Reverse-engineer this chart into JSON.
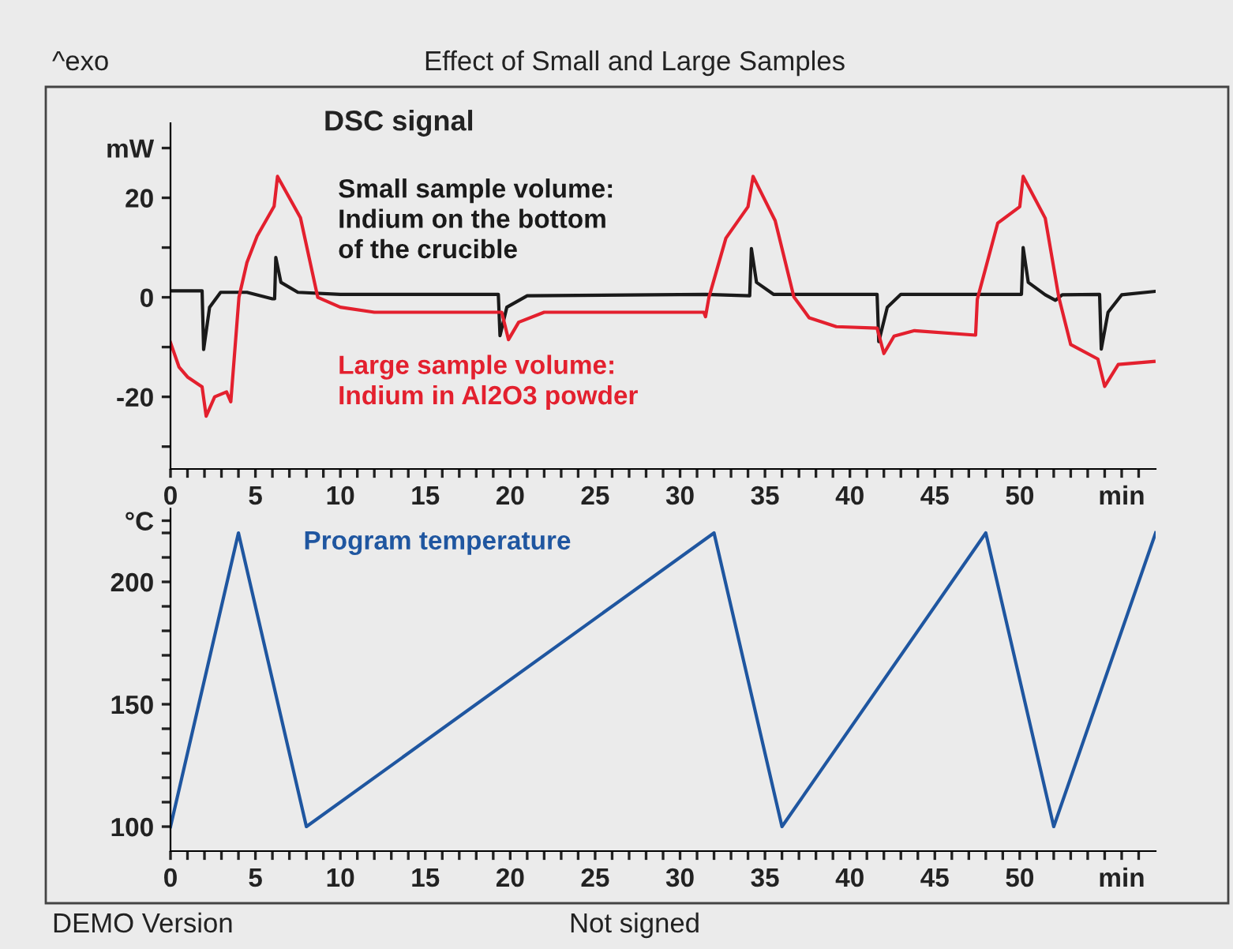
{
  "chart_data": [
    {
      "type": "line",
      "title": "Effect of Small and Large Samples",
      "annotations": [
        "^exo",
        "DSC signal"
      ],
      "xlim": [
        0,
        58
      ],
      "ylim": [
        -34.5,
        35
      ],
      "xticks": [
        0,
        {
          "value": 1,
          "label": null
        },
        {
          "value": 2,
          "label": null
        },
        {
          "value": 3,
          "label": null
        },
        {
          "value": 4,
          "label": null
        },
        5,
        {
          "value": 6,
          "label": null
        },
        {
          "value": 7,
          "label": null
        },
        {
          "value": 8,
          "label": null
        },
        {
          "value": 9,
          "label": null
        },
        10,
        {
          "value": 11,
          "label": null
        },
        {
          "value": 12,
          "label": null
        },
        {
          "value": 13,
          "label": null
        },
        {
          "value": 14,
          "label": null
        },
        15,
        {
          "value": 16,
          "label": null
        },
        {
          "value": 17,
          "label": null
        },
        {
          "value": 18,
          "label": null
        },
        {
          "value": 19,
          "label": null
        },
        20,
        {
          "value": 21,
          "label": null
        },
        {
          "value": 22,
          "label": null
        },
        {
          "value": 23,
          "label": null
        },
        {
          "value": 24,
          "label": null
        },
        25,
        {
          "value": 26,
          "label": null
        },
        {
          "value": 27,
          "label": null
        },
        {
          "value": 28,
          "label": null
        },
        {
          "value": 29,
          "label": null
        },
        30,
        {
          "value": 31,
          "label": null
        },
        {
          "value": 32,
          "label": null
        },
        {
          "value": 33,
          "label": null
        },
        {
          "value": 34,
          "label": null
        },
        35,
        {
          "value": 36,
          "label": null
        },
        {
          "value": 37,
          "label": null
        },
        {
          "value": 38,
          "label": null
        },
        {
          "value": 39,
          "label": null
        },
        40,
        {
          "value": 41,
          "label": null
        },
        {
          "value": 42,
          "label": null
        },
        {
          "value": 43,
          "label": null
        },
        {
          "value": 44,
          "label": null
        },
        45,
        {
          "value": 46,
          "label": null
        },
        {
          "value": 47,
          "label": null
        },
        {
          "value": 48,
          "label": null
        },
        {
          "value": 49,
          "label": null
        },
        50,
        {
          "value": 51,
          "label": null
        },
        {
          "value": 52,
          "label": null
        },
        {
          "value": 53,
          "label": null
        },
        {
          "value": 54,
          "label": null
        },
        {
          "value": 55,
          "label": null
        },
        {
          "value": 56,
          "label": "min"
        },
        {
          "value": 57,
          "label": null
        }
      ],
      "yticks": [
        {
          "value": -30,
          "label": null
        },
        -20,
        {
          "value": -10,
          "label": null
        },
        0,
        {
          "value": 10,
          "label": null
        },
        20,
        {
          "value": 30,
          "label": "mW"
        }
      ],
      "grid": false,
      "legend": false,
      "marker": "none",
      "line_style": "solid",
      "series": [
        {
          "name": "Small sample volume:\nIndium on the bottom\nof the crucible",
          "color": "#1a1a1a",
          "x": [
            0,
            1.86,
            1.95,
            2.3,
            2.95,
            4.5,
            6.0,
            6.13,
            6.2,
            6.5,
            7.5,
            10,
            19.3,
            19.4,
            19.8,
            21,
            31.5,
            34.1,
            34.2,
            34.5,
            35.5,
            41.6,
            41.7,
            42.2,
            43,
            50.1,
            50.2,
            50.5,
            51.5,
            52.1,
            52.5,
            54.7,
            54.8,
            55.2,
            56,
            58
          ],
          "values": [
            1.3,
            1.3,
            -10.5,
            -2,
            1.0,
            1.0,
            -0.3,
            -0.3,
            8,
            3,
            1,
            0.6,
            0.6,
            -7.7,
            -2,
            0.3,
            0.6,
            0.3,
            9.8,
            3,
            0.6,
            0.6,
            -8.9,
            -2,
            0.6,
            0.6,
            10,
            3,
            0.5,
            -0.6,
            0.5,
            0.6,
            -10.4,
            -3,
            0.5,
            1.2
          ]
        },
        {
          "name": "Large sample volume:\nIndium in Al2O3 powder",
          "color": "#e3202e",
          "x": [
            0,
            0.5,
            1.0,
            1.86,
            2.1,
            2.6,
            3.3,
            3.55,
            4.03,
            4.5,
            5.1,
            6.1,
            6.3,
            7.65,
            8.67,
            10,
            12,
            19.5,
            19.9,
            20.5,
            22,
            31.4,
            31.5,
            31.7,
            32.7,
            34.0,
            34.3,
            35.6,
            36.7,
            37.6,
            39.2,
            41.6,
            42.0,
            42.6,
            43.8,
            47.4,
            47.5,
            48.7,
            50.0,
            50.2,
            51.5,
            52.3,
            53.0,
            54.6,
            55.0,
            55.8,
            57.9
          ],
          "values": [
            -9.1,
            -14,
            -16,
            -18,
            -23.9,
            -20,
            -19,
            -21,
            0,
            7,
            12.3,
            18.3,
            24.3,
            16,
            0,
            -2,
            -3,
            -3,
            -8.5,
            -5,
            -3,
            -3,
            -3.9,
            0,
            11.9,
            18.2,
            24.3,
            15.4,
            0.1,
            -4.1,
            -5.9,
            -6.2,
            -11.3,
            -7.8,
            -6.7,
            -7.6,
            -0.4,
            14.9,
            18.2,
            24.3,
            15.9,
            0,
            -9.5,
            -12.4,
            -17.9,
            -13.5,
            -12.9
          ]
        }
      ]
    },
    {
      "type": "line",
      "annotations": [
        "DEMO Version",
        "Not signed"
      ],
      "xlim": [
        0,
        58
      ],
      "ylim": [
        90,
        230
      ],
      "xticks": [
        0,
        {
          "value": 1,
          "label": null
        },
        {
          "value": 2,
          "label": null
        },
        {
          "value": 3,
          "label": null
        },
        {
          "value": 4,
          "label": null
        },
        5,
        {
          "value": 6,
          "label": null
        },
        {
          "value": 7,
          "label": null
        },
        {
          "value": 8,
          "label": null
        },
        {
          "value": 9,
          "label": null
        },
        10,
        {
          "value": 11,
          "label": null
        },
        {
          "value": 12,
          "label": null
        },
        {
          "value": 13,
          "label": null
        },
        {
          "value": 14,
          "label": null
        },
        15,
        {
          "value": 16,
          "label": null
        },
        {
          "value": 17,
          "label": null
        },
        {
          "value": 18,
          "label": null
        },
        {
          "value": 19,
          "label": null
        },
        20,
        {
          "value": 21,
          "label": null
        },
        {
          "value": 22,
          "label": null
        },
        {
          "value": 23,
          "label": null
        },
        {
          "value": 24,
          "label": null
        },
        25,
        {
          "value": 26,
          "label": null
        },
        {
          "value": 27,
          "label": null
        },
        {
          "value": 28,
          "label": null
        },
        {
          "value": 29,
          "label": null
        },
        30,
        {
          "value": 31,
          "label": null
        },
        {
          "value": 32,
          "label": null
        },
        {
          "value": 33,
          "label": null
        },
        {
          "value": 34,
          "label": null
        },
        35,
        {
          "value": 36,
          "label": null
        },
        {
          "value": 37,
          "label": null
        },
        {
          "value": 38,
          "label": null
        },
        {
          "value": 39,
          "label": null
        },
        40,
        {
          "value": 41,
          "label": null
        },
        {
          "value": 42,
          "label": null
        },
        {
          "value": 43,
          "label": null
        },
        {
          "value": 44,
          "label": null
        },
        45,
        {
          "value": 46,
          "label": null
        },
        {
          "value": 47,
          "label": null
        },
        {
          "value": 48,
          "label": null
        },
        {
          "value": 49,
          "label": null
        },
        50,
        {
          "value": 51,
          "label": null
        },
        {
          "value": 52,
          "label": null
        },
        {
          "value": 53,
          "label": null
        },
        {
          "value": 54,
          "label": null
        },
        {
          "value": 55,
          "label": null
        },
        {
          "value": 56,
          "label": "min"
        },
        {
          "value": 57,
          "label": null
        }
      ],
      "yticks": [
        100,
        {
          "value": 110,
          "label": null
        },
        {
          "value": 120,
          "label": null
        },
        {
          "value": 130,
          "label": null
        },
        {
          "value": 140,
          "label": null
        },
        150,
        {
          "value": 160,
          "label": null
        },
        {
          "value": 170,
          "label": null
        },
        {
          "value": 180,
          "label": null
        },
        {
          "value": 190,
          "label": null
        },
        200,
        {
          "value": 210,
          "label": null
        },
        {
          "value": 220,
          "label": null
        },
        {
          "value": 225,
          "label": "°C"
        }
      ],
      "grid": false,
      "legend": false,
      "marker": "none",
      "line_style": "solid",
      "series": [
        {
          "name": "Program temperature",
          "color": "#1f56a0",
          "x": [
            0,
            4,
            8,
            32,
            36,
            48,
            52,
            58
          ],
          "values": [
            100,
            220,
            100,
            220,
            100,
            220,
            100,
            220
          ]
        }
      ]
    }
  ]
}
